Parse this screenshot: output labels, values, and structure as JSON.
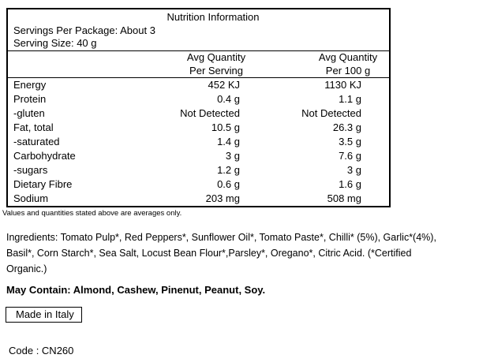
{
  "table": {
    "title": "Nutrition Information",
    "servings_per_package": "Servings Per Package: About 3",
    "serving_size": "Serving Size: 40 g",
    "per_serving_header": [
      "Avg Quantity",
      "Per Serving"
    ],
    "per_100g_header": [
      "Avg Quantity",
      "Per 100 g"
    ],
    "rows": [
      {
        "label": "Energy",
        "per_serving": "452 KJ",
        "per_100g": "1130 KJ"
      },
      {
        "label": "Protein",
        "per_serving": "0.4 g",
        "per_100g": "1.1 g"
      },
      {
        "label": "-gluten",
        "per_serving": "Not Detected",
        "per_100g": "Not Detected"
      },
      {
        "label": "Fat, total",
        "per_serving": "10.5 g",
        "per_100g": "26.3 g"
      },
      {
        "label": "-saturated",
        "per_serving": "1.4 g",
        "per_100g": "3.5 g"
      },
      {
        "label": "Carbohydrate",
        "per_serving": "3 g",
        "per_100g": "7.6 g"
      },
      {
        "label": "-sugars",
        "per_serving": "1.2 g",
        "per_100g": "3 g"
      },
      {
        "label": "Dietary Fibre",
        "per_serving": "0.6 g",
        "per_100g": "1.6 g"
      },
      {
        "label": "Sodium",
        "per_serving": "203 mg",
        "per_100g": "508 mg"
      }
    ]
  },
  "note": "Values and quantities stated above are averages only.",
  "ingredients": {
    "lines": [
      "Ingredients: Tomato Pulp*, Red Peppers*, Sunflower Oil*, Tomato Paste*, Chilli* (5%), Garlic*(4%),",
      "Basil*, Corn Starch*, Sea Salt, Locust Bean Flour*,Parsley*, Oregano*, Citric Acid. (*Certified",
      "Organic.)"
    ]
  },
  "may_contain": "May Contain: Almond, Cashew, Pinenut, Peanut, Soy.",
  "origin": "Made in Italy",
  "code": "Code : CN260",
  "colors": {
    "text": "#000000",
    "background": "#ffffff",
    "border": "#000000"
  }
}
